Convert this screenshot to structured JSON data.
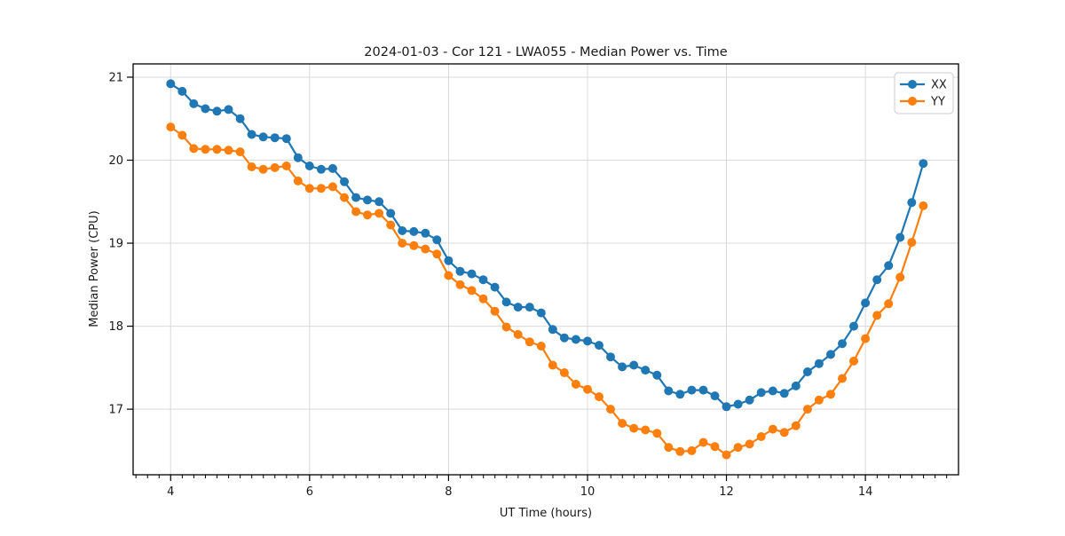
{
  "title": "2024-01-03 - Cor 121 - LWA055 - Median Power vs. Time",
  "legend": {
    "position": "upper-right",
    "items": [
      {
        "label": "XX",
        "color": "#1f77b4"
      },
      {
        "label": "YY",
        "color": "#ff7f0e"
      }
    ]
  },
  "colors": {
    "series_xx": "#1f77b4",
    "series_yy": "#ff7f0e",
    "grid": "#d9d9d9",
    "spine": "#000000",
    "background": "#ffffff"
  },
  "chart_data": {
    "type": "line",
    "title": "2024-01-03 - Cor 121 - LWA055 - Median Power vs. Time",
    "xlabel": "UT Time (hours)",
    "ylabel": "Median Power (CPU)",
    "xlim": [
      3.46,
      15.34
    ],
    "ylim": [
      16.21,
      21.16
    ],
    "x_major_ticks": [
      4,
      6,
      8,
      10,
      12,
      14
    ],
    "y_major_ticks": [
      17,
      18,
      19,
      20,
      21
    ],
    "x_minor_tick_step": 0.1667,
    "grid": "major-both",
    "legend_position": "upper-right",
    "marker": "circle",
    "x": [
      4.0,
      4.167,
      4.333,
      4.5,
      4.667,
      4.833,
      5.0,
      5.167,
      5.333,
      5.5,
      5.667,
      5.833,
      6.0,
      6.167,
      6.333,
      6.5,
      6.667,
      6.833,
      7.0,
      7.167,
      7.333,
      7.5,
      7.667,
      7.833,
      8.0,
      8.167,
      8.333,
      8.5,
      8.667,
      8.833,
      9.0,
      9.167,
      9.333,
      9.5,
      9.667,
      9.833,
      10.0,
      10.167,
      10.333,
      10.5,
      10.667,
      10.833,
      11.0,
      11.167,
      11.333,
      11.5,
      11.667,
      11.833,
      12.0,
      12.167,
      12.333,
      12.5,
      12.667,
      12.833,
      13.0,
      13.167,
      13.333,
      13.5,
      13.667,
      13.833,
      14.0,
      14.167,
      14.333,
      14.5,
      14.667,
      14.833
    ],
    "series": [
      {
        "name": "XX",
        "color": "#1f77b4",
        "values": [
          20.92,
          20.83,
          20.68,
          20.62,
          20.59,
          20.61,
          20.5,
          20.31,
          20.28,
          20.27,
          20.26,
          20.03,
          19.93,
          19.89,
          19.9,
          19.74,
          19.55,
          19.52,
          19.5,
          19.36,
          19.15,
          19.14,
          19.12,
          19.04,
          18.79,
          18.66,
          18.63,
          18.56,
          18.47,
          18.29,
          18.23,
          18.23,
          18.16,
          17.96,
          17.86,
          17.84,
          17.82,
          17.77,
          17.63,
          17.51,
          17.53,
          17.47,
          17.41,
          17.22,
          17.18,
          17.23,
          17.23,
          17.16,
          17.03,
          17.06,
          17.11,
          17.2,
          17.22,
          17.19,
          17.28,
          17.45,
          17.55,
          17.66,
          17.79,
          18.0,
          18.28,
          18.56,
          18.73,
          19.07,
          19.49,
          19.96
        ]
      },
      {
        "name": "YY",
        "color": "#ff7f0e",
        "values": [
          20.4,
          20.3,
          20.14,
          20.13,
          20.13,
          20.12,
          20.1,
          19.92,
          19.89,
          19.91,
          19.93,
          19.75,
          19.66,
          19.66,
          19.68,
          19.55,
          19.38,
          19.34,
          19.36,
          19.22,
          19.0,
          18.97,
          18.93,
          18.87,
          18.61,
          18.5,
          18.43,
          18.33,
          18.18,
          17.99,
          17.9,
          17.81,
          17.76,
          17.53,
          17.44,
          17.3,
          17.24,
          17.15,
          17.0,
          16.83,
          16.77,
          16.75,
          16.71,
          16.54,
          16.49,
          16.5,
          16.6,
          16.55,
          16.45,
          16.54,
          16.58,
          16.67,
          16.76,
          16.72,
          16.8,
          17.0,
          17.11,
          17.18,
          17.37,
          17.58,
          17.85,
          18.13,
          18.27,
          18.59,
          19.01,
          19.45
        ]
      }
    ]
  }
}
